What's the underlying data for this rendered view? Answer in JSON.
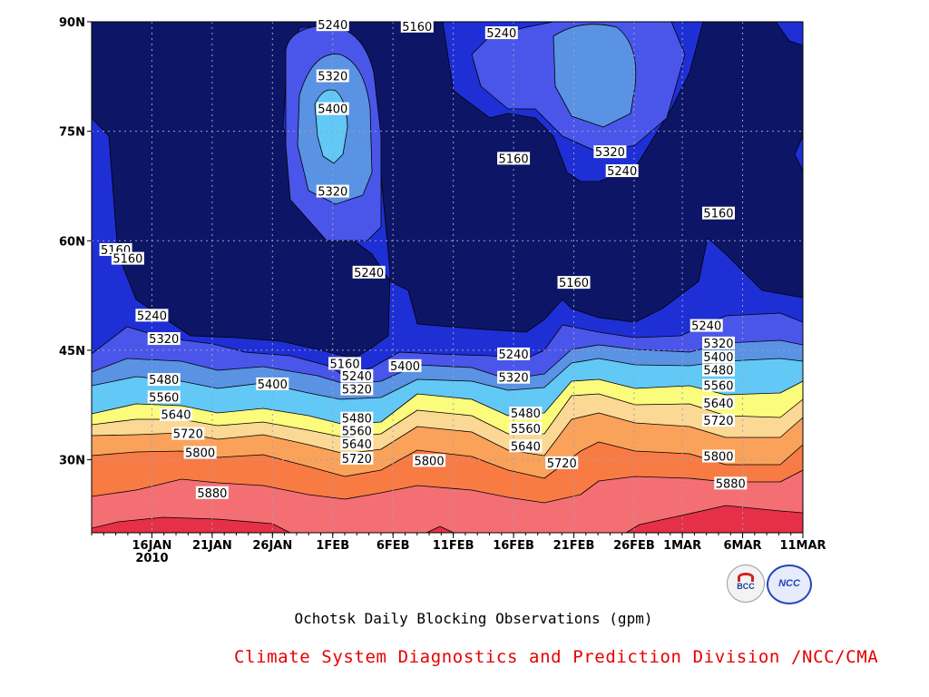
{
  "chart_data": {
    "type": "heatmap",
    "subtype": "filled-contour",
    "caption": "Ochotsk Daily Blocking Observations (gpm)",
    "credit": "Climate System Diagnostics and Prediction Division /NCC/CMA",
    "x_axis": {
      "tick_labels": [
        "16JAN",
        "21JAN",
        "26JAN",
        "1FEB",
        "6FEB",
        "11FEB",
        "16FEB",
        "21FEB",
        "26FEB",
        "1MAR",
        "6MAR",
        "11MAR"
      ],
      "year_label": "2010",
      "range": [
        "2010-01-11",
        "2010-03-11"
      ]
    },
    "y_axis": {
      "tick_labels": [
        "30N",
        "45N",
        "60N",
        "75N",
        "90N"
      ],
      "tick_values": [
        30,
        45,
        60,
        75,
        90
      ],
      "range": [
        20,
        90
      ]
    },
    "grid": "dotted",
    "contour_levels": [
      5160,
      5240,
      5320,
      5400,
      5480,
      5560,
      5640,
      5720,
      5800,
      5880
    ],
    "fill_colors": [
      "#0d1666",
      "#1e2fd6",
      "#4a56ea",
      "#5a92e4",
      "#62c8f6",
      "#80f0ff",
      "#fbfb7c",
      "#fbd894",
      "#fba25a",
      "#f97b44",
      "#f46f74",
      "#e53048"
    ],
    "contour_labels": [
      {
        "text": "5240",
        "day": "2010-01-31",
        "lat": 89.6
      },
      {
        "text": "5160",
        "day": "2010-02-07",
        "lat": 89.4
      },
      {
        "text": "5240",
        "day": "2010-02-14",
        "lat": 88.5
      },
      {
        "text": "5320",
        "day": "2010-01-31",
        "lat": 82.6
      },
      {
        "text": "5400",
        "day": "2010-01-31",
        "lat": 78.1
      },
      {
        "text": "5320",
        "day": "2010-02-23",
        "lat": 72.2
      },
      {
        "text": "5160",
        "day": "2010-02-15",
        "lat": 71.3
      },
      {
        "text": "5240",
        "day": "2010-02-24",
        "lat": 69.6
      },
      {
        "text": "5320",
        "day": "2010-01-31",
        "lat": 66.8
      },
      {
        "text": "5160",
        "day": "2010-03-04",
        "lat": 63.8
      },
      {
        "text": "5160",
        "day": "2010-01-13",
        "lat": 58.8
      },
      {
        "text": "5160",
        "day": "2010-01-14",
        "lat": 57.6
      },
      {
        "text": "5240",
        "day": "2010-02-03",
        "lat": 55.7
      },
      {
        "text": "5160",
        "day": "2010-02-20",
        "lat": 54.3
      },
      {
        "text": "5240",
        "day": "2010-01-16",
        "lat": 49.8
      },
      {
        "text": "5240",
        "day": "2010-03-03",
        "lat": 48.4
      },
      {
        "text": "5320",
        "day": "2010-01-17",
        "lat": 46.6
      },
      {
        "text": "5320",
        "day": "2010-03-04",
        "lat": 46.0
      },
      {
        "text": "5240",
        "day": "2010-02-15",
        "lat": 44.5
      },
      {
        "text": "5400",
        "day": "2010-03-04",
        "lat": 44.1
      },
      {
        "text": "5160",
        "day": "2010-02-01",
        "lat": 43.2
      },
      {
        "text": "5400",
        "day": "2010-02-06",
        "lat": 42.9
      },
      {
        "text": "5480",
        "day": "2010-03-04",
        "lat": 42.3
      },
      {
        "text": "5240",
        "day": "2010-02-02",
        "lat": 41.5
      },
      {
        "text": "5320",
        "day": "2010-02-15",
        "lat": 41.3
      },
      {
        "text": "5400",
        "day": "2010-01-26",
        "lat": 40.4
      },
      {
        "text": "5480",
        "day": "2010-01-17",
        "lat": 41.0
      },
      {
        "text": "5560",
        "day": "2010-03-04",
        "lat": 40.2
      },
      {
        "text": "5320",
        "day": "2010-02-02",
        "lat": 39.7
      },
      {
        "text": "5560",
        "day": "2010-01-17",
        "lat": 38.6
      },
      {
        "text": "5640",
        "day": "2010-03-04",
        "lat": 37.8
      },
      {
        "text": "5640",
        "day": "2010-01-18",
        "lat": 36.2
      },
      {
        "text": "5480",
        "day": "2010-02-02",
        "lat": 35.7
      },
      {
        "text": "5480",
        "day": "2010-02-16",
        "lat": 36.4
      },
      {
        "text": "5720",
        "day": "2010-03-04",
        "lat": 35.4
      },
      {
        "text": "5560",
        "day": "2010-02-02",
        "lat": 34.0
      },
      {
        "text": "5560",
        "day": "2010-02-16",
        "lat": 34.3
      },
      {
        "text": "5720",
        "day": "2010-01-19",
        "lat": 33.6
      },
      {
        "text": "5640",
        "day": "2010-02-02",
        "lat": 32.2
      },
      {
        "text": "5640",
        "day": "2010-02-16",
        "lat": 31.9
      },
      {
        "text": "5800",
        "day": "2010-01-20",
        "lat": 31.0
      },
      {
        "text": "5800",
        "day": "2010-03-04",
        "lat": 30.5
      },
      {
        "text": "5720",
        "day": "2010-02-02",
        "lat": 30.2
      },
      {
        "text": "5800",
        "day": "2010-02-08",
        "lat": 29.9
      },
      {
        "text": "5720",
        "day": "2010-02-19",
        "lat": 29.6
      },
      {
        "text": "5880",
        "day": "2010-01-21",
        "lat": 25.5
      },
      {
        "text": "5880",
        "day": "2010-03-05",
        "lat": 26.8
      }
    ]
  },
  "logos": {
    "left": {
      "name": "bcc-logo",
      "text": "BCC"
    },
    "right": {
      "name": "ncc-logo",
      "text": "NCC"
    }
  }
}
